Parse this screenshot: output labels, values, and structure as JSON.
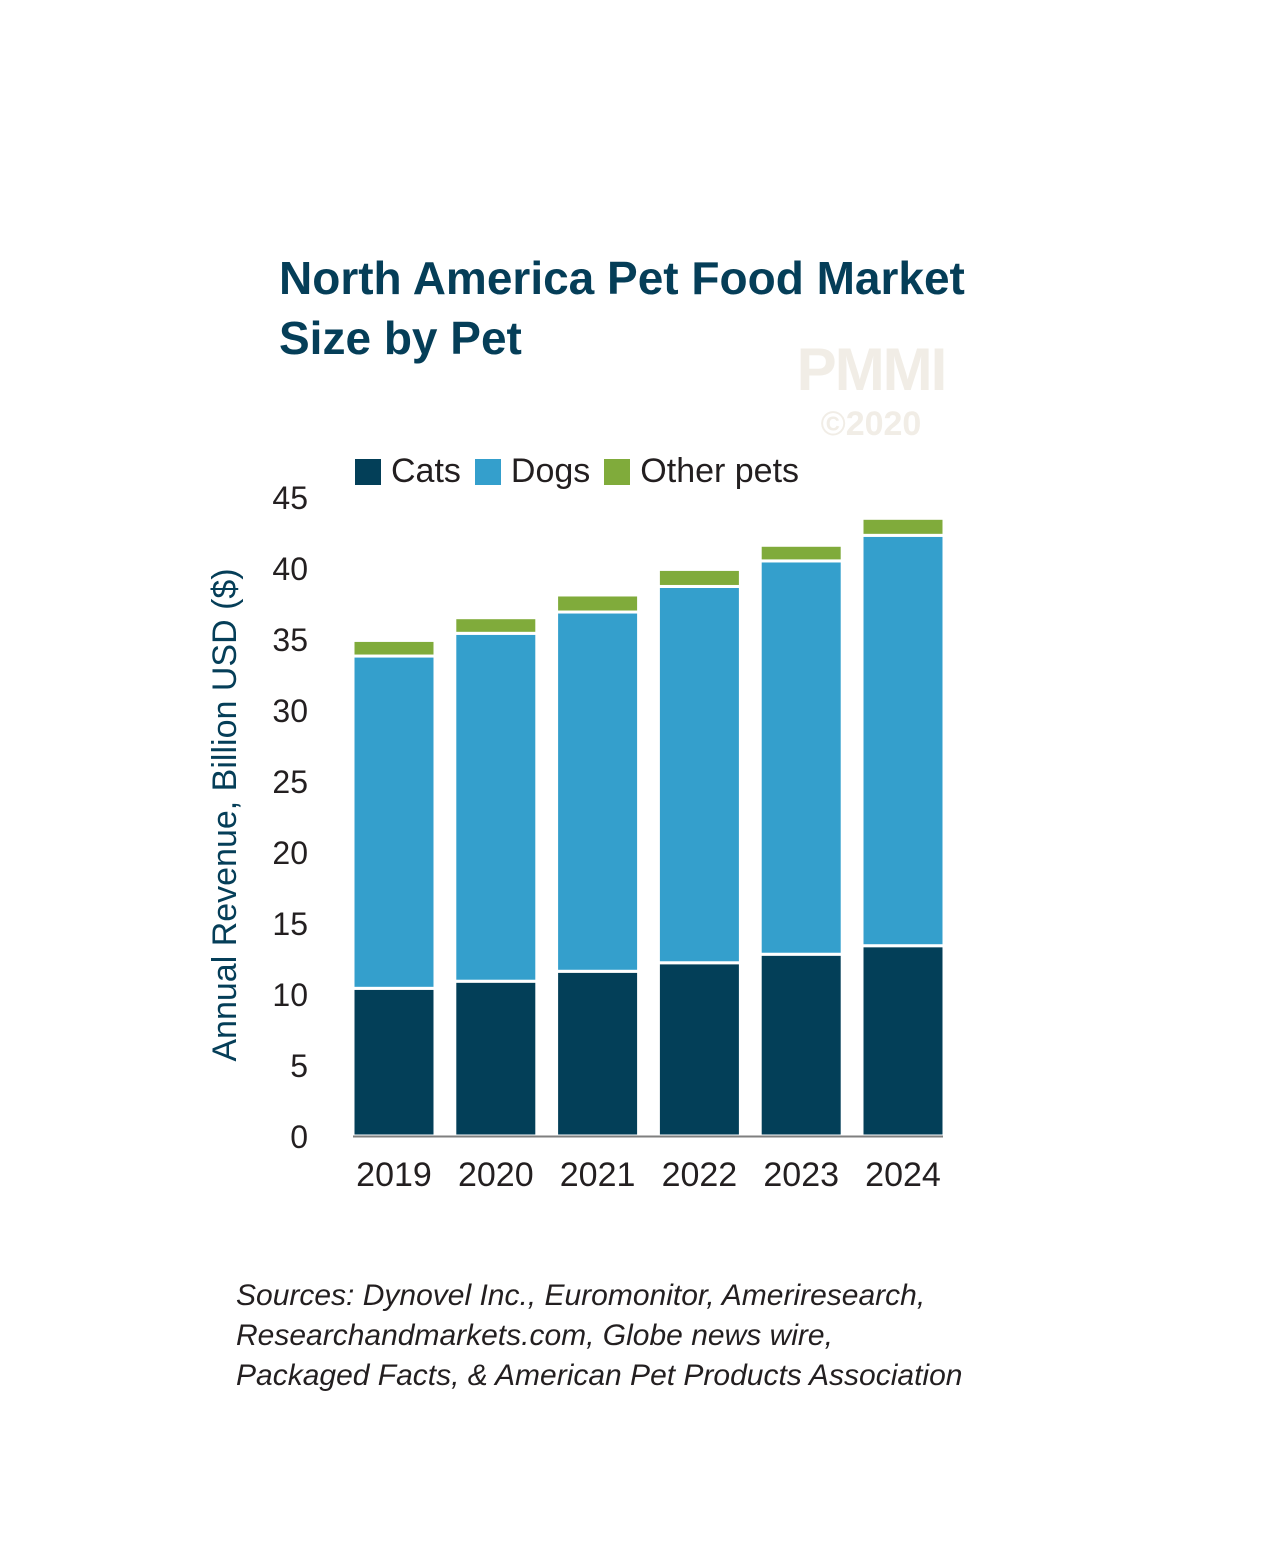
{
  "chart_data": {
    "type": "bar",
    "stacked": true,
    "title": "North America Pet Food Market Size by Pet",
    "ylabel": "Annual Revenue, Billion USD ($)",
    "xlabel": "",
    "ylim": [
      0,
      45
    ],
    "yticks": [
      "0",
      "5",
      "10",
      "15",
      "20",
      "25",
      "30",
      "35",
      "40",
      "45"
    ],
    "categories": [
      "2019",
      "2020",
      "2021",
      "2022",
      "2023",
      "2024"
    ],
    "series": [
      {
        "name": "Cats",
        "color": "#033f58",
        "values": [
          10.4,
          10.9,
          11.6,
          12.2,
          12.8,
          13.4
        ]
      },
      {
        "name": "Dogs",
        "color": "#349fcc",
        "values": [
          23.4,
          24.5,
          25.3,
          26.5,
          27.7,
          28.9
        ]
      },
      {
        "name": "Other pets",
        "color": "#80ab3b",
        "values": [
          1.1,
          1.1,
          1.2,
          1.2,
          1.1,
          1.2
        ]
      }
    ],
    "legend": "top",
    "grid": false
  },
  "title_lines": [
    "North America Pet Food Market",
    "Size by Pet"
  ],
  "watermark": {
    "brand": "PMMI",
    "copyright": "©2020"
  },
  "sources": [
    "Sources: Dynovel Inc., Euromonitor, Ameriresearch,",
    "Researchandmarkets.com, Globe news wire,",
    "Packaged Facts, & American Pet Products Association"
  ]
}
